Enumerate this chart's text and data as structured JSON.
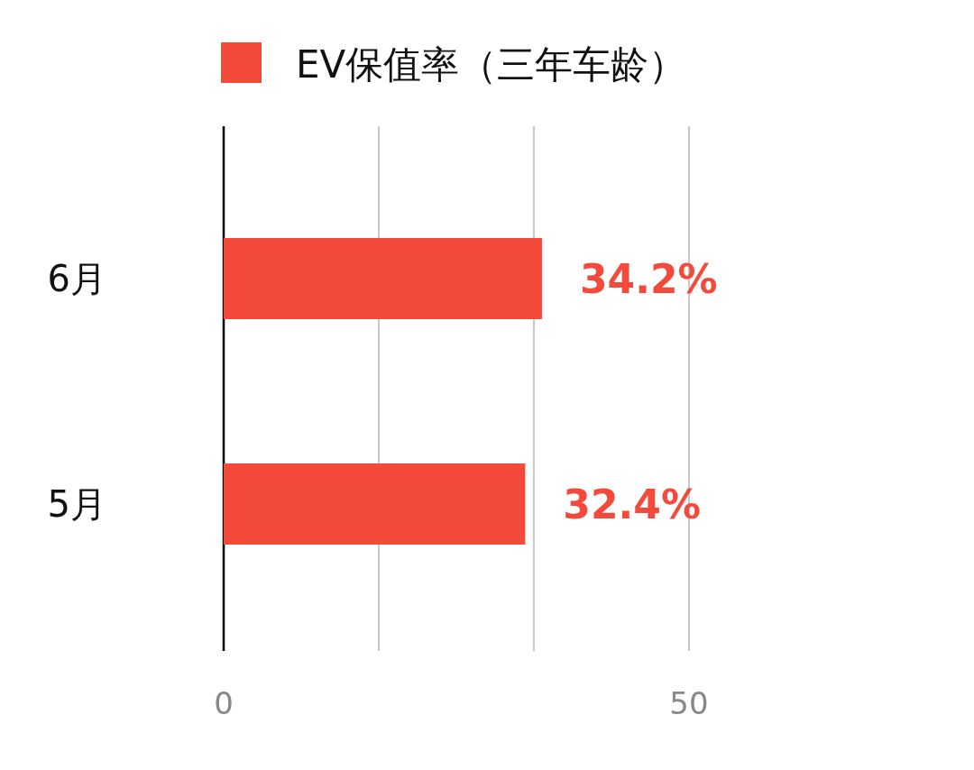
{
  "chart_data": {
    "type": "bar",
    "orientation": "horizontal",
    "categories": [
      "6月",
      "5月"
    ],
    "series": [
      {
        "name": "EV保值率（三年车龄）",
        "color": "#f44a3c",
        "values": [
          34.2,
          32.4
        ],
        "value_labels": [
          "34.2%",
          "32.4%"
        ]
      }
    ],
    "xlim": [
      0,
      50
    ],
    "xticks": [
      0,
      {
        "value": 16.67,
        "label": null
      },
      {
        "value": 33.33,
        "label": null
      },
      50
    ],
    "grid": "x",
    "legend": "top"
  }
}
